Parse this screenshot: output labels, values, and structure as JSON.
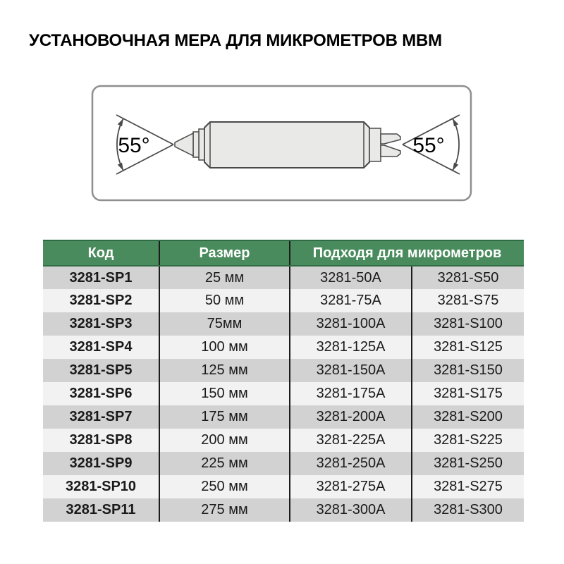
{
  "title": "УСТАНОВОЧНАЯ МЕРА ДЛЯ МИКРОМЕТРОВ МВМ",
  "diagram": {
    "left_angle_label": "55°",
    "right_angle_label": "55°"
  },
  "table": {
    "headers": {
      "code": "Код",
      "size": "Размер",
      "micrometers": "Подходя для микрометров"
    },
    "rows": [
      [
        "3281-SP1",
        "25 мм",
        "3281-50A",
        "3281-S50"
      ],
      [
        "3281-SP2",
        "50 мм",
        "3281-75A",
        "3281-S75"
      ],
      [
        "3281-SP3",
        "75мм",
        "3281-100A",
        "3281-S100"
      ],
      [
        "3281-SP4",
        "100 мм",
        "3281-125A",
        "3281-S125"
      ],
      [
        "3281-SP5",
        "125 мм",
        "3281-150A",
        "3281-S150"
      ],
      [
        "3281-SP6",
        "150 мм",
        "3281-175A",
        "3281-S175"
      ],
      [
        "3281-SP7",
        "175 мм",
        "3281-200A",
        "3281-S200"
      ],
      [
        "3281-SP8",
        "200 мм",
        "3281-225A",
        "3281-S225"
      ],
      [
        "3281-SP9",
        "225 мм",
        "3281-250A",
        "3281-S250"
      ],
      [
        "3281-SP10",
        "250 мм",
        "3281-275A",
        "3281-S275"
      ],
      [
        "3281-SP11",
        "275 мм",
        "3281-300A",
        "3281-S300"
      ]
    ]
  },
  "colors": {
    "header_bg": "#4A8B5D",
    "header_border": "#2E6B44",
    "row_gray": "#D2D2D2",
    "row_light": "#F2F2F2",
    "divider": "#1C1C1C",
    "title_text": "#000000",
    "header_text": "#FFFFFF"
  }
}
